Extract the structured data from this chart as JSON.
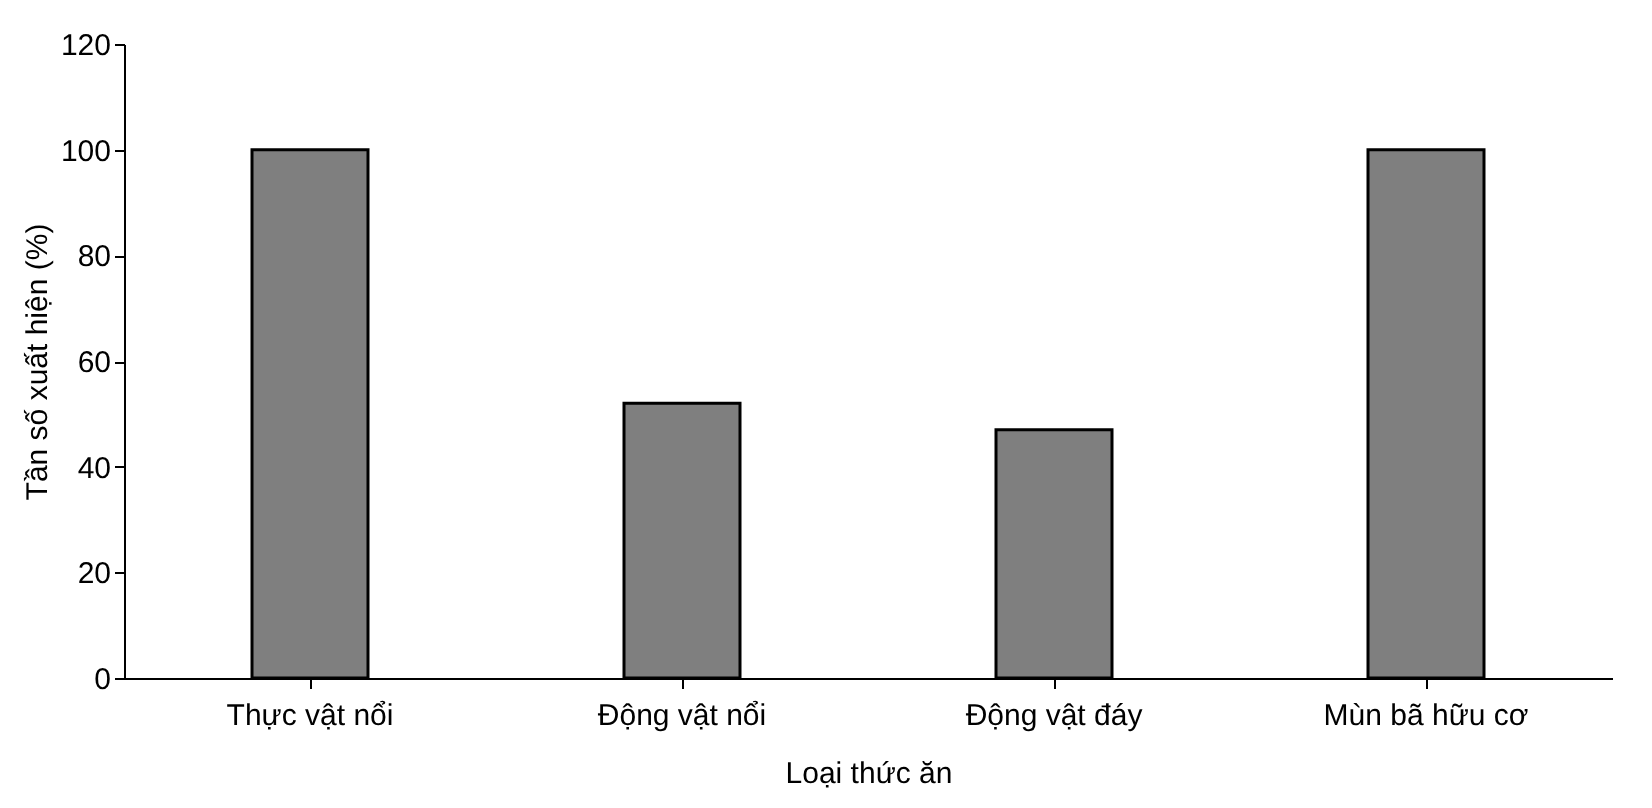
{
  "chart_data": {
    "type": "bar",
    "xlabel": "Loại thức ăn",
    "ylabel": "Tần số xuất hiện (%)",
    "categories": [
      "Thực vật nổi",
      "Động vật nổi",
      "Động vật đáy",
      "Mùn bã hữu cơ"
    ],
    "values": [
      100,
      52,
      47,
      100
    ],
    "colors": [
      "#7f7f7f",
      "#7f7f7f",
      "#7f7f7f",
      "#7f7f7f"
    ],
    "ylim": [
      0,
      120
    ],
    "yticks": [
      0,
      20,
      40,
      60,
      80,
      100,
      120
    ],
    "grid": false
  }
}
